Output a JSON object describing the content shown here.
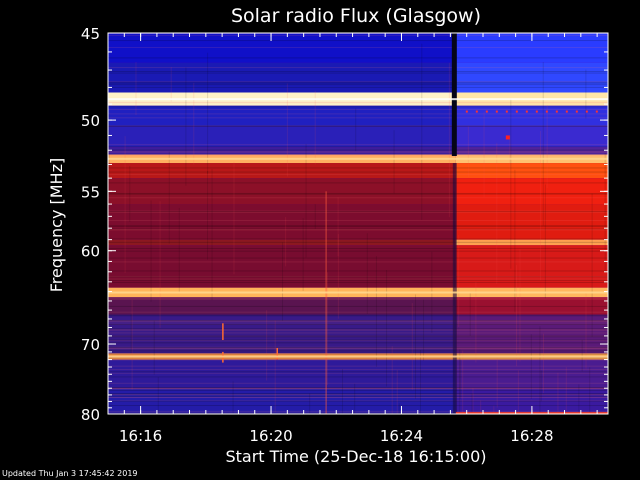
{
  "chart_data": {
    "type": "heatmap",
    "title": "Solar radio Flux (Glasgow)",
    "ylabel": "Frequency [MHz]",
    "xlabel": "Start Time (25-Dec-18 16:15:00)",
    "x_ticks": [
      "16:16",
      "16:20",
      "16:24",
      "16:28"
    ],
    "y_ticks": [
      "45",
      "50",
      "55",
      "60",
      "70",
      "80"
    ],
    "xlim": [
      "16:15:00",
      "16:30:20"
    ],
    "ylim": [
      45,
      80
    ],
    "y_scale": "reciprocal",
    "colormap": [
      "#0000ff",
      "#800080",
      "#ff0000",
      "#ffa500",
      "#ffffff"
    ],
    "event_time": "16:25:40",
    "bright_bands_mhz": [
      48.7,
      52.6,
      64.1,
      71.6
    ],
    "grid": false
  },
  "footer": {
    "updated": "Updated Thu Jan  3 17:45:42 2019"
  }
}
